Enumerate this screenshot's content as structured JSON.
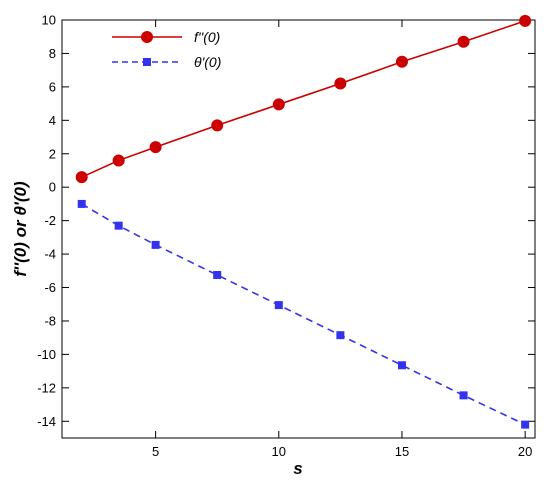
{
  "chart_data": {
    "type": "line",
    "xlabel": "s",
    "ylabel": "f''(0) or θ'(0)",
    "xlim": [
      1.2,
      20.4
    ],
    "ylim": [
      -15,
      10
    ],
    "x_ticks": [
      5,
      10,
      15,
      20
    ],
    "y_ticks": [
      10,
      8,
      6,
      4,
      2,
      0,
      -2,
      -4,
      -6,
      -8,
      -10,
      -12,
      -14
    ],
    "grid": false,
    "legend_position": "top-left",
    "series": [
      {
        "name": "f''(0)",
        "color": "#cc0000",
        "line_style": "solid",
        "marker": "circle",
        "x": [
          2,
          3.5,
          5,
          7.5,
          10,
          12.5,
          15,
          17.5,
          20
        ],
        "y": [
          0.6,
          1.6,
          2.4,
          3.7,
          4.95,
          6.2,
          7.5,
          8.7,
          9.95
        ]
      },
      {
        "name": "θ'(0)",
        "color": "#3333ee",
        "line_style": "dashed",
        "marker": "square",
        "x": [
          2,
          3.5,
          5,
          7.5,
          10,
          12.5,
          15,
          17.5,
          20
        ],
        "y": [
          -1.0,
          -2.3,
          -3.45,
          -5.25,
          -7.05,
          -8.85,
          -10.65,
          -12.45,
          -14.2
        ]
      }
    ]
  }
}
